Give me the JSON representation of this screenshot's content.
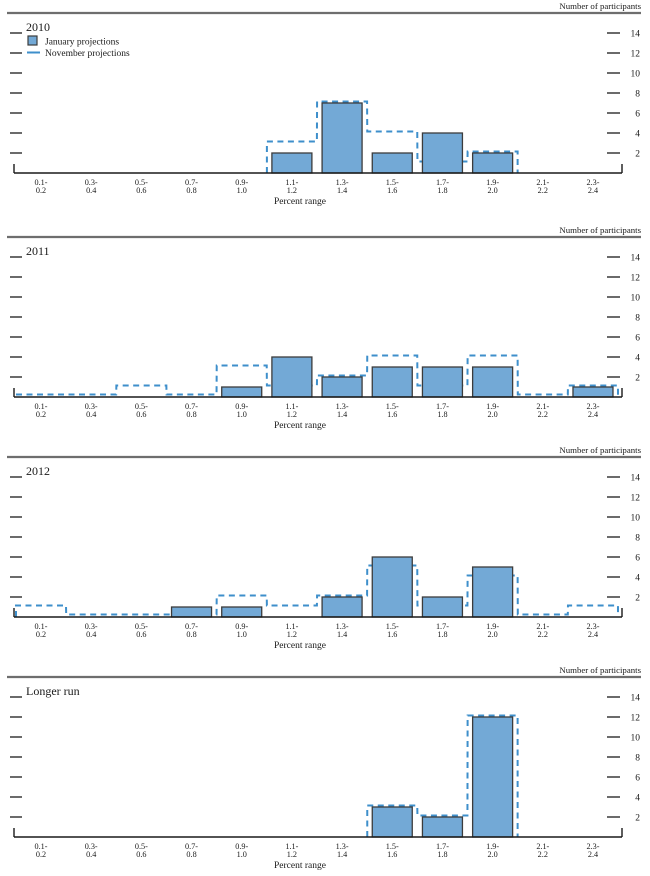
{
  "header_label": "Number of participants",
  "x_axis_label": "Percent range",
  "legend": {
    "january": "January projections",
    "november": "November projections"
  },
  "y_ticks": [
    2,
    4,
    6,
    8,
    10,
    12,
    14
  ],
  "bin_labels_two_line": [
    [
      "0.1-",
      "0.2"
    ],
    [
      "0.3-",
      "0.4"
    ],
    [
      "0.5-",
      "0.6"
    ],
    [
      "0.7-",
      "0.8"
    ],
    [
      "0.9-",
      "1.0"
    ],
    [
      "1.1-",
      "1.2"
    ],
    [
      "1.3-",
      "1.4"
    ],
    [
      "1.5-",
      "1.6"
    ],
    [
      "1.7-",
      "1.8"
    ],
    [
      "1.9-",
      "2.0"
    ],
    [
      "2.1-",
      "2.2"
    ],
    [
      "2.3-",
      "2.4"
    ]
  ],
  "colors": {
    "bar_fill": "#73A9D6",
    "bar_stroke": "#3C3C3C",
    "nov_dash": "#3E8FCB",
    "axis": "#1A1A1A",
    "tick": "#2B2B2B",
    "rule": "#6E6E6E",
    "text": "#1A1A1A"
  },
  "panels": [
    {
      "title": "2010",
      "has_legend": true,
      "january": [
        0,
        0,
        0,
        0,
        0,
        2,
        7,
        2,
        4,
        2,
        0,
        0
      ],
      "november": [
        0,
        0,
        0,
        0,
        0,
        3,
        7,
        4,
        1,
        2,
        0,
        0
      ],
      "nov_trace_bins": [
        5,
        9
      ]
    },
    {
      "title": "2011",
      "has_legend": false,
      "january": [
        0,
        0,
        0,
        0,
        1,
        4,
        2,
        3,
        3,
        3,
        0,
        1
      ],
      "november": [
        0,
        0,
        1,
        0,
        3,
        1,
        2,
        4,
        1,
        4,
        0,
        1
      ],
      "nov_trace_bins": [
        0,
        11
      ]
    },
    {
      "title": "2012",
      "has_legend": false,
      "january": [
        0,
        0,
        0,
        1,
        1,
        0,
        2,
        6,
        2,
        5,
        0,
        0
      ],
      "november": [
        1,
        0,
        0,
        0,
        2,
        1,
        2,
        5,
        1,
        4,
        0,
        1
      ],
      "nov_trace_bins": [
        0,
        11
      ]
    },
    {
      "title": "Longer run",
      "has_legend": false,
      "january": [
        0,
        0,
        0,
        0,
        0,
        0,
        0,
        3,
        2,
        12,
        0,
        0
      ],
      "november": [
        0,
        0,
        0,
        0,
        0,
        0,
        0,
        3,
        2,
        12,
        0,
        0
      ],
      "nov_trace_bins": [
        7,
        9
      ]
    }
  ],
  "chart_data": [
    {
      "type": "bar",
      "title": "2010",
      "categories": [
        "0.1-0.2",
        "0.3-0.4",
        "0.5-0.6",
        "0.7-0.8",
        "0.9-1.0",
        "1.1-1.2",
        "1.3-1.4",
        "1.5-1.6",
        "1.7-1.8",
        "1.9-2.0",
        "2.1-2.2",
        "2.3-2.4"
      ],
      "series": [
        {
          "name": "January projections",
          "values": [
            0,
            0,
            0,
            0,
            0,
            2,
            7,
            2,
            4,
            2,
            0,
            0
          ]
        },
        {
          "name": "November projections",
          "values": [
            0,
            0,
            0,
            0,
            0,
            3,
            7,
            4,
            1,
            2,
            0,
            0
          ]
        }
      ],
      "xlabel": "Percent range",
      "ylabel": "Number of participants",
      "ylim": [
        0,
        15
      ],
      "yticks": [
        2,
        4,
        6,
        8,
        10,
        12,
        14
      ],
      "legend_position": "top-left",
      "grid": false
    },
    {
      "type": "bar",
      "title": "2011",
      "categories": [
        "0.1-0.2",
        "0.3-0.4",
        "0.5-0.6",
        "0.7-0.8",
        "0.9-1.0",
        "1.1-1.2",
        "1.3-1.4",
        "1.5-1.6",
        "1.7-1.8",
        "1.9-2.0",
        "2.1-2.2",
        "2.3-2.4"
      ],
      "series": [
        {
          "name": "January projections",
          "values": [
            0,
            0,
            0,
            0,
            1,
            4,
            2,
            3,
            3,
            3,
            0,
            1
          ]
        },
        {
          "name": "November projections",
          "values": [
            0,
            0,
            1,
            0,
            3,
            1,
            2,
            4,
            1,
            4,
            0,
            1
          ]
        }
      ],
      "xlabel": "Percent range",
      "ylabel": "Number of participants",
      "ylim": [
        0,
        15
      ],
      "yticks": [
        2,
        4,
        6,
        8,
        10,
        12,
        14
      ],
      "grid": false
    },
    {
      "type": "bar",
      "title": "2012",
      "categories": [
        "0.1-0.2",
        "0.3-0.4",
        "0.5-0.6",
        "0.7-0.8",
        "0.9-1.0",
        "1.1-1.2",
        "1.3-1.4",
        "1.5-1.6",
        "1.7-1.8",
        "1.9-2.0",
        "2.1-2.2",
        "2.3-2.4"
      ],
      "series": [
        {
          "name": "January projections",
          "values": [
            0,
            0,
            0,
            1,
            1,
            0,
            2,
            6,
            2,
            5,
            0,
            0
          ]
        },
        {
          "name": "November projections",
          "values": [
            1,
            0,
            0,
            0,
            2,
            1,
            2,
            5,
            1,
            4,
            0,
            1
          ]
        }
      ],
      "xlabel": "Percent range",
      "ylabel": "Number of participants",
      "ylim": [
        0,
        15
      ],
      "yticks": [
        2,
        4,
        6,
        8,
        10,
        12,
        14
      ],
      "grid": false
    },
    {
      "type": "bar",
      "title": "Longer run",
      "categories": [
        "0.1-0.2",
        "0.3-0.4",
        "0.5-0.6",
        "0.7-0.8",
        "0.9-1.0",
        "1.1-1.2",
        "1.3-1.4",
        "1.5-1.6",
        "1.7-1.8",
        "1.9-2.0",
        "2.1-2.2",
        "2.3-2.4"
      ],
      "series": [
        {
          "name": "January projections",
          "values": [
            0,
            0,
            0,
            0,
            0,
            0,
            0,
            3,
            2,
            12,
            0,
            0
          ]
        },
        {
          "name": "November projections",
          "values": [
            0,
            0,
            0,
            0,
            0,
            0,
            0,
            3,
            2,
            12,
            0,
            0
          ]
        }
      ],
      "xlabel": "Percent range",
      "ylabel": "Number of participants",
      "ylim": [
        0,
        15
      ],
      "yticks": [
        2,
        4,
        6,
        8,
        10,
        12,
        14
      ],
      "grid": false
    }
  ]
}
